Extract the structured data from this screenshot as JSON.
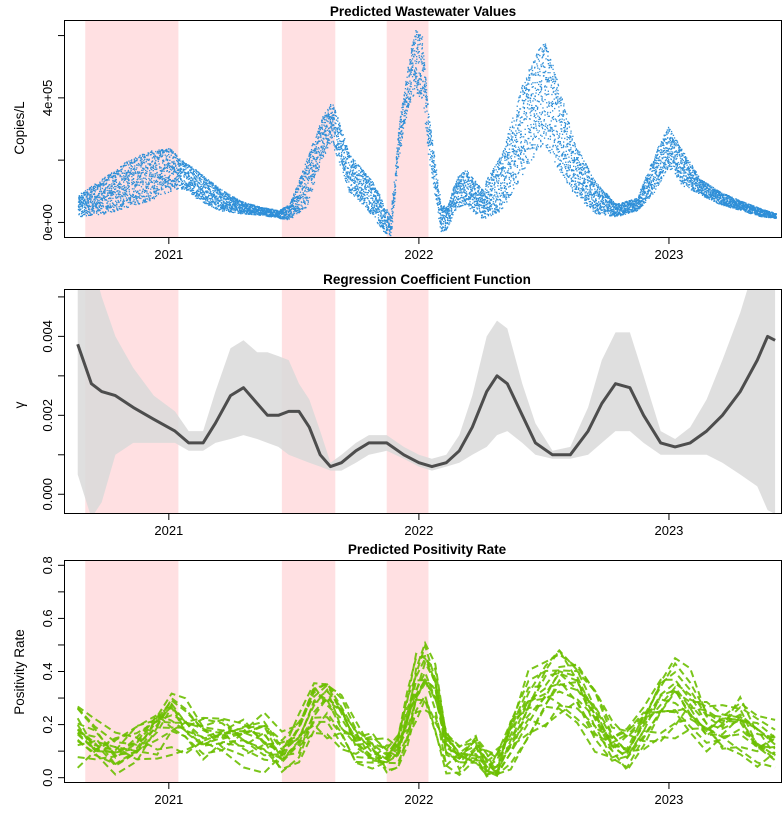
{
  "chart_data": [
    {
      "type": "scatter",
      "title": "Predicted Wastewater Values",
      "xlabel": "",
      "ylabel": "Copies/L",
      "x_ticks": [
        "2021",
        "2022",
        "2023"
      ],
      "y_ticks": [
        {
          "value": 0,
          "label": "0e+00"
        },
        {
          "value": 400000,
          "label": "4e+05"
        }
      ],
      "xlim": [
        "2020-08-01",
        "2023-06-15"
      ],
      "ylim": [
        -50000,
        650000
      ],
      "shaded_periods": [
        [
          "2020-09-01",
          "2021-01-15"
        ],
        [
          "2021-06-15",
          "2021-09-01"
        ],
        [
          "2021-11-15",
          "2022-01-15"
        ]
      ],
      "point_color": "#2f8fd8",
      "shade_color": "#ffe0e2",
      "band": {
        "x": [
          "2020-08-21",
          "2020-10-01",
          "2020-11-01",
          "2020-12-01",
          "2021-01-01",
          "2021-01-20",
          "2021-02-15",
          "2021-03-15",
          "2021-04-15",
          "2021-05-15",
          "2021-06-10",
          "2021-06-25",
          "2021-07-20",
          "2021-08-10",
          "2021-08-25",
          "2021-09-05",
          "2021-09-20",
          "2021-10-10",
          "2021-10-25",
          "2021-11-10",
          "2021-11-20",
          "2021-12-01",
          "2021-12-15",
          "2021-12-25",
          "2022-01-05",
          "2022-01-15",
          "2022-02-01",
          "2022-02-10",
          "2022-02-25",
          "2022-03-10",
          "2022-04-01",
          "2022-05-01",
          "2022-06-01",
          "2022-07-01",
          "2022-07-15",
          "2022-08-15",
          "2022-09-15",
          "2022-10-15",
          "2022-11-15",
          "2022-12-10",
          "2022-12-30",
          "2023-01-20",
          "2023-02-15",
          "2023-03-15",
          "2023-04-15",
          "2023-05-15",
          "2023-06-05"
        ],
        "lower": [
          20000,
          30000,
          50000,
          70000,
          100000,
          110000,
          70000,
          40000,
          30000,
          25000,
          15000,
          10000,
          50000,
          200000,
          260000,
          200000,
          100000,
          60000,
          20000,
          -30000,
          -40000,
          200000,
          370000,
          420000,
          390000,
          200000,
          -30000,
          -20000,
          50000,
          60000,
          10000,
          40000,
          160000,
          260000,
          200000,
          90000,
          30000,
          20000,
          40000,
          100000,
          180000,
          120000,
          90000,
          60000,
          40000,
          20000,
          15000
        ],
        "upper": [
          90000,
          150000,
          200000,
          230000,
          240000,
          200000,
          160000,
          110000,
          70000,
          50000,
          40000,
          60000,
          200000,
          330000,
          390000,
          330000,
          220000,
          170000,
          130000,
          60000,
          20000,
          300000,
          500000,
          620000,
          600000,
          330000,
          60000,
          50000,
          150000,
          170000,
          110000,
          220000,
          450000,
          590000,
          500000,
          260000,
          130000,
          60000,
          80000,
          220000,
          310000,
          230000,
          140000,
          100000,
          70000,
          45000,
          30000
        ]
      }
    },
    {
      "type": "line",
      "title": "Regression Coefficient Function",
      "xlabel": "",
      "ylabel": "γ",
      "x_ticks": [
        "2021",
        "2022",
        "2023"
      ],
      "y_ticks": [
        {
          "value": 0,
          "label": "0.000"
        },
        {
          "value": 0.002,
          "label": "0.002"
        },
        {
          "value": 0.004,
          "label": "0.004"
        }
      ],
      "xlim": [
        "2020-08-01",
        "2023-06-15"
      ],
      "ylim": [
        -0.0005,
        0.0052
      ],
      "shaded_periods": [
        [
          "2020-09-01",
          "2021-01-15"
        ],
        [
          "2021-06-15",
          "2021-09-01"
        ],
        [
          "2021-11-15",
          "2022-01-15"
        ]
      ],
      "line_color": "#4d4d4d",
      "band_color": "#d9d9d9",
      "x": [
        "2020-08-21",
        "2020-09-10",
        "2020-09-25",
        "2020-10-15",
        "2020-11-10",
        "2020-12-10",
        "2021-01-10",
        "2021-01-30",
        "2021-02-20",
        "2021-03-10",
        "2021-04-01",
        "2021-04-20",
        "2021-05-10",
        "2021-05-25",
        "2021-06-10",
        "2021-06-25",
        "2021-07-10",
        "2021-07-25",
        "2021-08-10",
        "2021-08-25",
        "2021-09-10",
        "2021-10-01",
        "2021-10-20",
        "2021-11-15",
        "2021-12-10",
        "2022-01-01",
        "2022-01-20",
        "2022-02-10",
        "2022-03-01",
        "2022-03-20",
        "2022-04-10",
        "2022-04-25",
        "2022-05-10",
        "2022-06-01",
        "2022-06-20",
        "2022-07-15",
        "2022-08-10",
        "2022-09-05",
        "2022-09-25",
        "2022-10-15",
        "2022-11-05",
        "2022-11-25",
        "2022-12-20",
        "2023-01-10",
        "2023-02-01",
        "2023-02-25",
        "2023-03-20",
        "2023-04-15",
        "2023-05-10",
        "2023-05-25",
        "2023-06-05"
      ],
      "y": [
        0.0038,
        0.0028,
        0.0026,
        0.0025,
        0.0022,
        0.0019,
        0.0016,
        0.0013,
        0.0013,
        0.0018,
        0.0025,
        0.0027,
        0.0023,
        0.002,
        0.002,
        0.0021,
        0.0021,
        0.0017,
        0.001,
        0.0007,
        0.0008,
        0.0011,
        0.0013,
        0.0013,
        0.001,
        0.0008,
        0.0007,
        0.0008,
        0.0011,
        0.0017,
        0.0026,
        0.003,
        0.0028,
        0.002,
        0.0013,
        0.001,
        0.001,
        0.0016,
        0.0023,
        0.0028,
        0.0027,
        0.002,
        0.0013,
        0.0012,
        0.0013,
        0.0016,
        0.002,
        0.0026,
        0.0034,
        0.004,
        0.0039
      ],
      "lower": [
        0.0005,
        -0.0006,
        -0.0002,
        0.001,
        0.0013,
        0.0013,
        0.0013,
        0.0011,
        0.0011,
        0.0013,
        0.0014,
        0.0015,
        0.0014,
        0.0013,
        0.0012,
        0.001,
        0.0009,
        0.0008,
        0.0007,
        0.0006,
        0.0006,
        0.0008,
        0.001,
        0.0011,
        0.0009,
        0.0007,
        0.0006,
        0.0007,
        0.0008,
        0.001,
        0.0012,
        0.0015,
        0.0016,
        0.0013,
        0.001,
        0.0009,
        0.0009,
        0.001,
        0.0013,
        0.0016,
        0.0016,
        0.0013,
        0.001,
        0.001,
        0.001,
        0.001,
        0.0008,
        0.0005,
        0.0002,
        -0.0004,
        -0.0005
      ],
      "upper": [
        0.006,
        0.006,
        0.005,
        0.004,
        0.0032,
        0.0025,
        0.0021,
        0.0016,
        0.0016,
        0.0026,
        0.0037,
        0.0039,
        0.0036,
        0.0036,
        0.0035,
        0.0034,
        0.0028,
        0.0024,
        0.0016,
        0.0008,
        0.001,
        0.0013,
        0.0015,
        0.0015,
        0.0012,
        0.001,
        0.0009,
        0.001,
        0.0015,
        0.0025,
        0.004,
        0.0044,
        0.0042,
        0.0028,
        0.0018,
        0.0011,
        0.0012,
        0.0022,
        0.0034,
        0.0041,
        0.0041,
        0.003,
        0.0016,
        0.0014,
        0.0017,
        0.0024,
        0.0034,
        0.0046,
        0.006,
        0.006,
        0.006
      ]
    },
    {
      "type": "line",
      "title": "Predicted Positivity Rate",
      "xlabel": "",
      "ylabel": "Positivity Rate",
      "x_ticks": [
        "2021",
        "2022",
        "2023"
      ],
      "y_ticks": [
        {
          "value": 0,
          "label": "0.0"
        },
        {
          "value": 0.2,
          "label": "0.2"
        },
        {
          "value": 0.4,
          "label": "0.4"
        },
        {
          "value": 0.6,
          "label": "0.6"
        },
        {
          "value": 0.8,
          "label": "0.8"
        }
      ],
      "xlim": [
        "2020-08-01",
        "2023-06-15"
      ],
      "ylim": [
        -0.02,
        0.82
      ],
      "shaded_periods": [
        [
          "2020-09-01",
          "2021-01-15"
        ],
        [
          "2021-06-15",
          "2021-09-01"
        ],
        [
          "2021-11-15",
          "2022-01-15"
        ]
      ],
      "line_color": "#6bbf00",
      "x": [
        "2020-08-21",
        "2020-09-15",
        "2020-10-15",
        "2020-11-15",
        "2020-12-15",
        "2021-01-05",
        "2021-01-25",
        "2021-02-20",
        "2021-03-20",
        "2021-04-20",
        "2021-05-20",
        "2021-06-15",
        "2021-07-10",
        "2021-08-01",
        "2021-08-20",
        "2021-09-10",
        "2021-10-01",
        "2021-10-25",
        "2021-11-15",
        "2021-12-01",
        "2021-12-15",
        "2021-12-28",
        "2022-01-10",
        "2022-01-25",
        "2022-02-10",
        "2022-03-01",
        "2022-03-25",
        "2022-04-10",
        "2022-04-25",
        "2022-05-15",
        "2022-06-10",
        "2022-07-05",
        "2022-07-25",
        "2022-08-20",
        "2022-09-15",
        "2022-10-10",
        "2022-11-01",
        "2022-11-25",
        "2022-12-20",
        "2023-01-10",
        "2023-02-01",
        "2023-02-25",
        "2023-03-20",
        "2023-04-15",
        "2023-05-10",
        "2023-06-05"
      ],
      "y": [
        0.15,
        0.12,
        0.1,
        0.12,
        0.16,
        0.2,
        0.18,
        0.15,
        0.14,
        0.13,
        0.12,
        0.09,
        0.15,
        0.25,
        0.25,
        0.2,
        0.13,
        0.1,
        0.06,
        0.08,
        0.2,
        0.33,
        0.38,
        0.28,
        0.1,
        0.06,
        0.1,
        0.05,
        0.03,
        0.12,
        0.25,
        0.32,
        0.35,
        0.3,
        0.2,
        0.12,
        0.12,
        0.18,
        0.24,
        0.28,
        0.26,
        0.2,
        0.17,
        0.18,
        0.13,
        0.12
      ]
    }
  ]
}
